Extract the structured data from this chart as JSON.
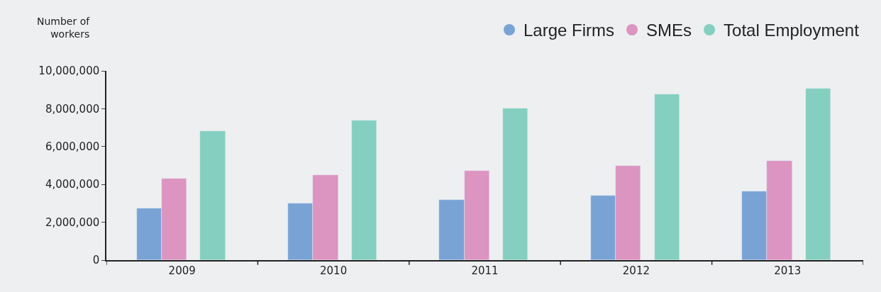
{
  "chart_data": {
    "type": "bar",
    "ylabel": "Number of\nworkers",
    "categories": [
      "2009",
      "2010",
      "2011",
      "2012",
      "2013"
    ],
    "series": [
      {
        "name": "Large Firms",
        "color": "#79a3d5",
        "values": [
          2750000,
          2990000,
          3190000,
          3390000,
          3640000
        ]
      },
      {
        "name": "SMEs",
        "color": "#dc94c1",
        "values": [
          4310000,
          4510000,
          4710000,
          4990000,
          5240000
        ]
      },
      {
        "name": "Total Employment",
        "color": "#84cfbf",
        "values": [
          6830000,
          7390000,
          8000000,
          8760000,
          9050000
        ]
      }
    ],
    "ylim": [
      0,
      10000000
    ],
    "yticks": [
      {
        "value": 0,
        "label": "0"
      },
      {
        "value": 2000000,
        "label": "2,000,000"
      },
      {
        "value": 4000000,
        "label": "4,000,000"
      },
      {
        "value": 6000000,
        "label": "6,000,000"
      },
      {
        "value": 8000000,
        "label": "8,000,000"
      },
      {
        "value": 10000000,
        "label": "10,000,000"
      }
    ],
    "grid": false,
    "legend": "top right"
  }
}
